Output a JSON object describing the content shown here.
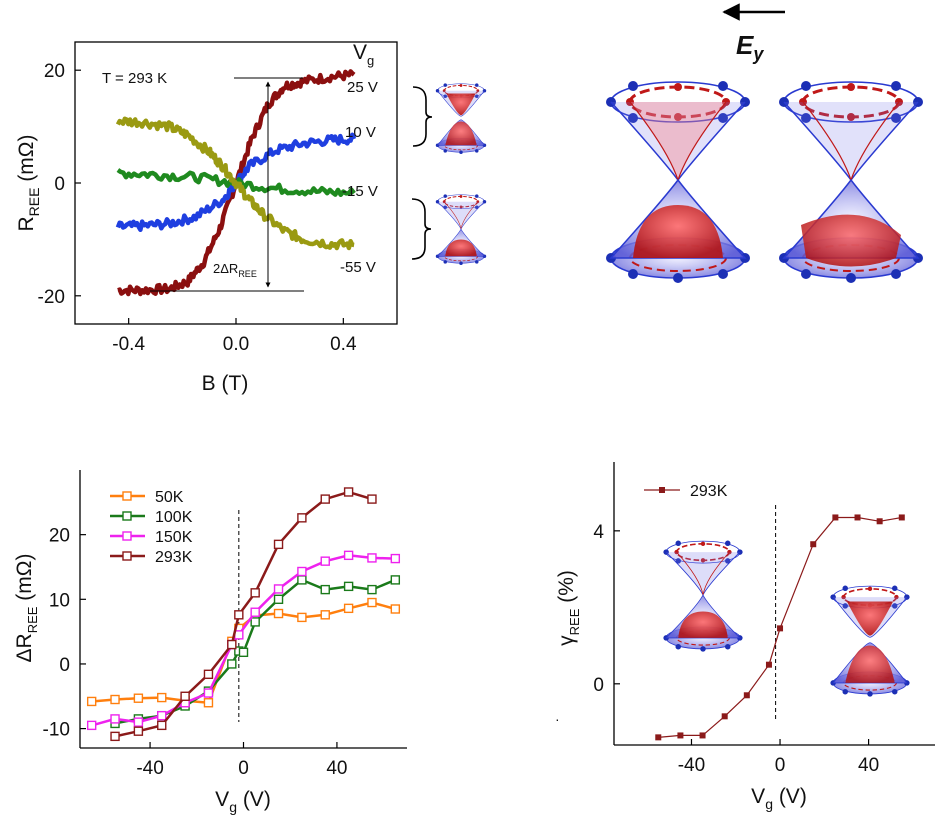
{
  "chart_data": [
    {
      "type": "line",
      "xlabel": "B (T)",
      "ylabel_main": "R",
      "ylabel_sub": "REE",
      "ylabel_unit": " (mΩ)",
      "annotation": "T = 293 K",
      "legend_title_main": "V",
      "legend_title_sub": "g",
      "delta_label_prefix": "2ΔR",
      "delta_label_sub": "REE",
      "xlim": [
        -0.6,
        0.6
      ],
      "ylim": [
        -25,
        25
      ],
      "x_ticks": [
        "-0.4",
        "0.0",
        "0.4"
      ],
      "x_tick_values": [
        -0.4,
        0.0,
        0.4
      ],
      "y_ticks": [
        "-20",
        "0",
        "20"
      ],
      "y_tick_values": [
        -20,
        0,
        20
      ],
      "series": [
        {
          "name": "25 V",
          "color": "#8b0f0f",
          "x": [
            -0.44,
            -0.35,
            -0.25,
            -0.18,
            -0.12,
            -0.06,
            0.0,
            0.06,
            0.12,
            0.18,
            0.25,
            0.35,
            0.44
          ],
          "y": [
            -19,
            -19,
            -18.8,
            -17.5,
            -14,
            -8,
            0,
            8,
            14,
            17.2,
            18,
            18.8,
            19.2
          ]
        },
        {
          "name": "10 V",
          "color": "#1f3fe0",
          "x": [
            -0.44,
            -0.35,
            -0.25,
            -0.15,
            -0.05,
            0.0,
            0.05,
            0.15,
            0.25,
            0.35,
            0.44
          ],
          "y": [
            -7.8,
            -7.6,
            -7.2,
            -6,
            -3,
            0,
            3,
            5.8,
            7,
            7.6,
            7.8
          ]
        },
        {
          "name": "-15 V",
          "color": "#1f8a1f",
          "x": [
            -0.44,
            -0.3,
            -0.15,
            0.0,
            0.15,
            0.3,
            0.44
          ],
          "y": [
            1.8,
            1.5,
            1,
            0,
            -1,
            -1.5,
            -1.8
          ]
        },
        {
          "name": "-55 V",
          "color": "#9a9a12",
          "x": [
            -0.44,
            -0.35,
            -0.25,
            -0.18,
            -0.1,
            -0.05,
            0.0,
            0.05,
            0.1,
            0.18,
            0.25,
            0.35,
            0.44
          ],
          "y": [
            11,
            10.8,
            10,
            8.5,
            5.5,
            3,
            0,
            -3,
            -5.5,
            -8.5,
            -10,
            -10.8,
            -11
          ]
        }
      ]
    },
    {
      "type": "line",
      "xlabel_main": "V",
      "xlabel_sub": "g",
      "xlabel_unit": " (V)",
      "ylabel_main": "ΔR",
      "ylabel_sub": "REE",
      "ylabel_unit": " (mΩ)",
      "xlim": [
        -70,
        70
      ],
      "ylim": [
        -13,
        30
      ],
      "x_ticks": [
        "-40",
        "0",
        "40"
      ],
      "x_tick_values": [
        -40,
        0,
        40
      ],
      "y_ticks": [
        "-10",
        "0",
        "10",
        "20"
      ],
      "y_tick_values": [
        -10,
        0,
        10,
        20
      ],
      "dashed_x": -2,
      "series": [
        {
          "name": "50K",
          "color": "#ff7f0e",
          "x": [
            -65,
            -55,
            -45,
            -35,
            -25,
            -15,
            -5,
            -2,
            5,
            15,
            25,
            35,
            45,
            55,
            65
          ],
          "y": [
            -5.8,
            -5.5,
            -5.3,
            -5.2,
            -5.7,
            -6,
            3.5,
            5.5,
            7.5,
            7.8,
            7.2,
            7.6,
            8.6,
            9.5,
            8.5
          ]
        },
        {
          "name": "100K",
          "color": "#1a7a1a",
          "x": [
            -55,
            -45,
            -35,
            -25,
            -15,
            -5,
            -2,
            0,
            5,
            15,
            25,
            35,
            45,
            55,
            65
          ],
          "y": [
            -9.2,
            -8.5,
            -8,
            -6.5,
            -4.2,
            0,
            2,
            1.8,
            6.5,
            10,
            13,
            11.5,
            12,
            11.5,
            13
          ]
        },
        {
          "name": "150K",
          "color": "#ee22ee",
          "x": [
            -65,
            -55,
            -45,
            -35,
            -25,
            -15,
            -5,
            -2,
            5,
            15,
            25,
            35,
            45,
            55,
            65
          ],
          "y": [
            -9.5,
            -8.5,
            -9,
            -8,
            -6,
            -4.5,
            3,
            4.5,
            8,
            11.6,
            14.3,
            15.9,
            16.8,
            16.4,
            16.3
          ]
        },
        {
          "name": "293K",
          "color": "#8b1a1a",
          "x": [
            -55,
            -45,
            -35,
            -25,
            -15,
            -5,
            -2,
            5,
            15,
            25,
            35,
            45,
            55
          ],
          "y": [
            -11.2,
            -10.4,
            -9.5,
            -5,
            -1.6,
            3,
            7.6,
            11,
            18.5,
            22.6,
            25.5,
            26.6,
            25.5
          ]
        }
      ]
    },
    {
      "type": "line",
      "xlabel_main": "V",
      "xlabel_sub": "g",
      "xlabel_unit": " (V)",
      "ylabel_main": "γ",
      "ylabel_sub": "REE",
      "ylabel_unit": " (%)",
      "xlim": [
        -75,
        70
      ],
      "ylim": [
        -1.6,
        5.8
      ],
      "x_ticks": [
        "-40",
        "0",
        "40"
      ],
      "x_tick_values": [
        -40,
        0,
        40
      ],
      "y_ticks": [
        "0",
        "4"
      ],
      "y_tick_values": [
        0,
        4
      ],
      "dashed_x": -2,
      "series": [
        {
          "name": "293K",
          "color": "#8b1a1a",
          "x": [
            -55,
            -45,
            -35,
            -25,
            -15,
            -5,
            0,
            15,
            25,
            35,
            45,
            55
          ],
          "y": [
            -1.4,
            -1.35,
            -1.35,
            -0.85,
            -0.3,
            0.5,
            1.45,
            3.65,
            4.35,
            4.35,
            4.25,
            4.35
          ]
        }
      ]
    }
  ],
  "efield_label_main": "E",
  "efield_label_sub": "y",
  "tick_right": "·"
}
